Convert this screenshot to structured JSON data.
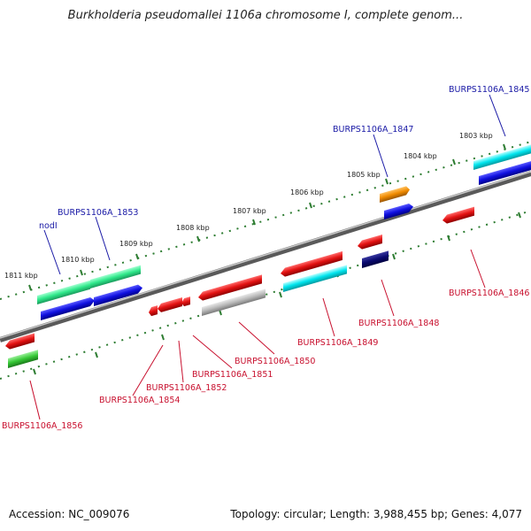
{
  "title": "Burkholderia pseudomallei 1106a chromosome I, complete genom...",
  "footer": {
    "accession": "Accession: NC_009076",
    "summary": "Topology: circular; Length: 3,988,455 bp; Genes: 4,077"
  },
  "ticks": [
    "1803 kbp",
    "1804 kbp",
    "1805 kbp",
    "1806 kbp",
    "1807 kbp",
    "1808 kbp",
    "1809 kbp",
    "1810 kbp",
    "1811 kbp"
  ],
  "gene_labels": {
    "forward": [
      "BURPS1106A_1845",
      "BURPS1106A_1847",
      "BURPS1106A_1853",
      "nodI"
    ],
    "reverse": [
      "BURPS1106A_1846",
      "BURPS1106A_1848",
      "BURPS1106A_1849",
      "BURPS1106A_1850",
      "BURPS1106A_1851",
      "BURPS1106A_1852",
      "BURPS1106A_1854",
      "BURPS1106A_1856"
    ]
  },
  "colors": {
    "forward_label": "#1a1aa6",
    "reverse_label": "#c8102e",
    "backbone": "#888888",
    "tick": "#2e7d32",
    "red": "#e31212",
    "blue": "#1010e0",
    "cyan": "#00e5ee",
    "green": "#2ee88a",
    "orange": "#f08a00",
    "navy": "#0a0a70",
    "gray": "#b8b8b8",
    "lime": "#36c936"
  }
}
